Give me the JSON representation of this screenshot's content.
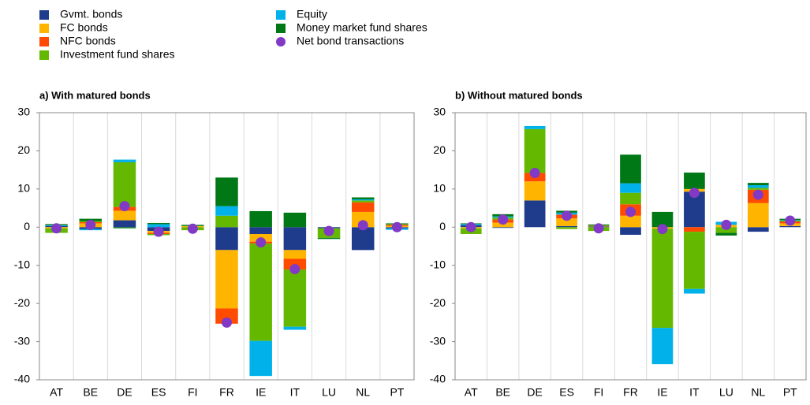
{
  "chart_data": [
    {
      "type": "bar",
      "stacked": true,
      "title": "a) With matured bonds",
      "categories": [
        "AT",
        "BE",
        "DE",
        "ES",
        "FI",
        "FR",
        "IE",
        "IT",
        "LU",
        "NL",
        "PT"
      ],
      "ylim": [
        -40,
        30
      ],
      "yticks": [
        -40,
        -30,
        -20,
        -10,
        0,
        10,
        20,
        30
      ],
      "series": [
        {
          "name": "Gvmt. bonds",
          "color": "#1f3c8c",
          "values": [
            0.3,
            -0.5,
            1.8,
            -1,
            0,
            -6,
            -1.8,
            -6,
            -0.3,
            -6,
            -0.3
          ]
        },
        {
          "name": "FC bonds",
          "color": "#ffb400",
          "values": [
            -0.3,
            1,
            2.5,
            -0.5,
            0.3,
            -15.3,
            -2,
            -2.3,
            0,
            4,
            0.3
          ]
        },
        {
          "name": "NFC bonds",
          "color": "#ff4b00",
          "values": [
            0,
            0.3,
            1,
            -0.3,
            0,
            -4,
            -0.5,
            -2.8,
            0,
            2.5,
            0.3
          ]
        },
        {
          "name": "Investment fund shares",
          "color": "#65b800",
          "values": [
            -1.2,
            0.3,
            11.7,
            -0.3,
            -0.8,
            3,
            -25.5,
            -15,
            -2.5,
            0.5,
            0.2
          ]
        },
        {
          "name": "Equity",
          "color": "#00b1ea",
          "values": [
            0.2,
            -0.3,
            0.7,
            0.8,
            0,
            2.5,
            -9.2,
            -0.8,
            0,
            0.3,
            -0.4
          ]
        },
        {
          "name": "Money market fund shares",
          "color": "#007816",
          "values": [
            0.3,
            0.6,
            -0.3,
            0.3,
            0.3,
            7.5,
            4.2,
            3.8,
            -0.3,
            0.5,
            0.2
          ]
        },
        {
          "name": "Net bond transactions",
          "color": "#8139c6",
          "type": "scatter",
          "values": [
            -0.3,
            0.6,
            5.5,
            -1.2,
            -0.4,
            -25,
            -4,
            -11,
            -1,
            0.5,
            0
          ]
        }
      ]
    },
    {
      "type": "bar",
      "stacked": true,
      "title": "b) Without matured bonds",
      "categories": [
        "AT",
        "BE",
        "DE",
        "ES",
        "FI",
        "FR",
        "IE",
        "IT",
        "LU",
        "NL",
        "PT"
      ],
      "ylim": [
        -40,
        30
      ],
      "yticks": [
        -40,
        -30,
        -20,
        -10,
        0,
        10,
        20,
        30
      ],
      "series": [
        {
          "name": "Gvmt. bonds",
          "color": "#1f3c8c",
          "values": [
            0.5,
            -0.2,
            7,
            0.3,
            0.2,
            -2,
            0,
            9.3,
            0,
            -1.2,
            0.3
          ]
        },
        {
          "name": "FC bonds",
          "color": "#ffb400",
          "values": [
            -0.3,
            1.2,
            5,
            2,
            0.2,
            3,
            -0.4,
            0.7,
            0.6,
            6.3,
            0.7
          ]
        },
        {
          "name": "NFC bonds",
          "color": "#ff4b00",
          "values": [
            0,
            0.8,
            2.2,
            1,
            0,
            3,
            0,
            -1.2,
            0,
            3.5,
            0.5
          ]
        },
        {
          "name": "Investment fund shares",
          "color": "#65b800",
          "values": [
            -1.5,
            0.5,
            11.5,
            -0.5,
            -1,
            3,
            -26,
            -15,
            -1.5,
            0.5,
            0.2
          ]
        },
        {
          "name": "Equity",
          "color": "#00b1ea",
          "values": [
            0.3,
            0.3,
            0.8,
            0.5,
            0,
            2.5,
            -9.5,
            -1.2,
            0.8,
            0.7,
            0.2
          ]
        },
        {
          "name": "Money market fund shares",
          "color": "#007816",
          "values": [
            0.2,
            0.6,
            0,
            0.5,
            0.3,
            7.5,
            4,
            4.3,
            -0.7,
            0.6,
            0.3
          ]
        },
        {
          "name": "Net bond transactions",
          "color": "#8139c6",
          "type": "scatter",
          "values": [
            0,
            2,
            14.2,
            3,
            -0.3,
            4,
            -0.5,
            9,
            0.6,
            8.5,
            1.7
          ]
        }
      ]
    }
  ]
}
